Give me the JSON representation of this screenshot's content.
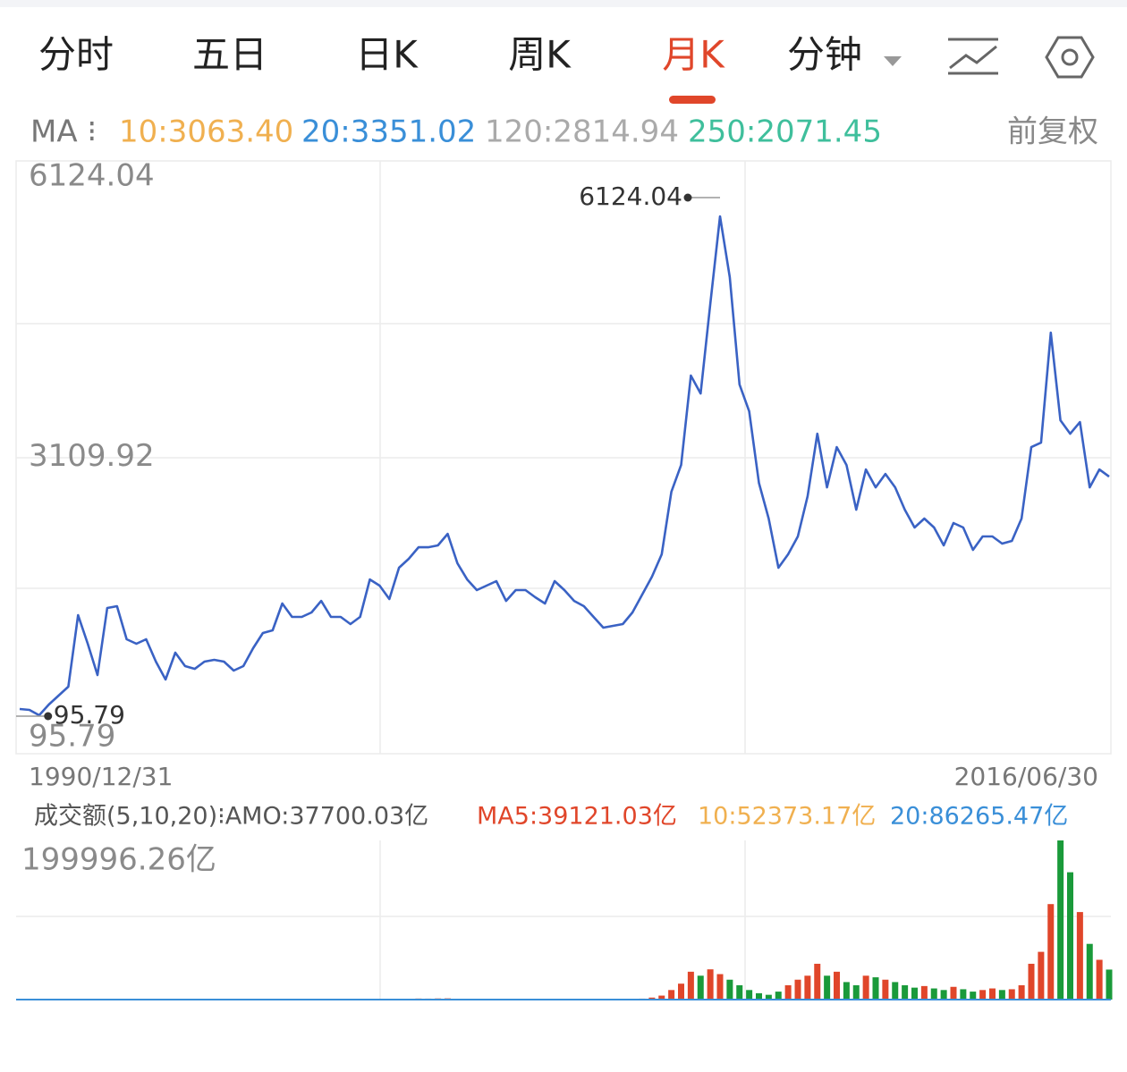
{
  "header": {
    "tabs": [
      "分时",
      "五日",
      "日K",
      "周K",
      "月K",
      "分钟"
    ],
    "ma_label": "MA ⁝",
    "ma": [
      "10:3063.40",
      "20:3351.02",
      "120:2814.94",
      "250:2071.45"
    ],
    "adjust": "前复权"
  },
  "volume_header": {
    "amo": "成交额(5,10,20)⁝AMO:37700.03亿",
    "ma": [
      "MA5:39121.03亿",
      "10:52373.17亿",
      "20:86265.47亿"
    ]
  },
  "chart_data": {
    "type": "line",
    "color": "#3a62c4",
    "categories": [
      "1990/12/31",
      null,
      null,
      null,
      null,
      null,
      null,
      null,
      null,
      null,
      null,
      null,
      null,
      null,
      null,
      null,
      null,
      null,
      null,
      null,
      null,
      null,
      null,
      null,
      null,
      null,
      null,
      null,
      null,
      null,
      null,
      null,
      null,
      null,
      null,
      null,
      null,
      null,
      null,
      null,
      null,
      null,
      null,
      null,
      null,
      null,
      null,
      null,
      null,
      null,
      null,
      null,
      null,
      null,
      null,
      null,
      null,
      null,
      null,
      null,
      null,
      null,
      null,
      null,
      null,
      null,
      null,
      null,
      null,
      null,
      null,
      null,
      null,
      null,
      null,
      null,
      null,
      null,
      null,
      null,
      null,
      null,
      null,
      null,
      null,
      null,
      null,
      null,
      null,
      null,
      null,
      null,
      null,
      null,
      null,
      null,
      null,
      null,
      null,
      null,
      null,
      null,
      null,
      null,
      null,
      null,
      null,
      null,
      null,
      null,
      null,
      null,
      "2016/06/30"
    ],
    "values": [
      171,
      161,
      95.79,
      225,
      333,
      441,
      1305,
      960,
      582,
      1392,
      1414,
      1014,
      960,
      1014,
      744,
      528,
      852,
      690,
      657,
      744,
      766,
      744,
      636,
      690,
      906,
      1090,
      1122,
      1446,
      1284,
      1284,
      1338,
      1478,
      1284,
      1284,
      1198,
      1284,
      1737,
      1662,
      1500,
      1878,
      1986,
      2126,
      2126,
      2148,
      2288,
      1932,
      1737,
      1608,
      1662,
      1716,
      1478,
      1608,
      1608,
      1522,
      1446,
      1716,
      1608,
      1478,
      1414,
      1284,
      1154,
      1176,
      1198,
      1338,
      1554,
      1770,
      2040,
      2796,
      3120,
      4200,
      3984,
      5064,
      6124.04,
      5388,
      4092,
      3768,
      2904,
      2472,
      1878,
      2040,
      2256,
      2742,
      3498,
      2850,
      3336,
      3120,
      2580,
      3066,
      2850,
      3012,
      2850,
      2580,
      2364,
      2472,
      2364,
      2148,
      2418,
      2364,
      2094,
      2256,
      2256,
      2170,
      2202,
      2472,
      3336,
      3390,
      4718,
      3660,
      3498,
      3638,
      2850,
      3066,
      2979
    ],
    "ylim": [
      95.79,
      6124.04
    ],
    "yticks": [
      95.79,
      3109.92,
      6124.04
    ],
    "volume": {
      "type": "bar",
      "up_color": "#e0462a",
      "down_color": "#1a9a3a",
      "values": [
        5,
        8,
        12,
        20,
        30,
        60,
        120,
        90,
        80,
        150,
        200,
        180,
        150,
        160,
        120,
        100,
        140,
        110,
        100,
        130,
        120,
        110,
        100,
        130,
        200,
        300,
        350,
        500,
        420,
        400,
        450,
        520,
        400,
        380,
        350,
        400,
        700,
        650,
        600,
        900,
        1100,
        1300,
        1200,
        1400,
        1500,
        1000,
        800,
        700,
        750,
        800,
        600,
        650,
        700,
        600,
        550,
        800,
        700,
        600,
        550,
        500,
        450,
        500,
        520,
        700,
        1200,
        2500,
        5000,
        12000,
        20000,
        35000,
        30000,
        38000,
        32000,
        25000,
        18000,
        12000,
        8000,
        6000,
        10000,
        18000,
        25000,
        30000,
        45000,
        30000,
        35000,
        22000,
        18000,
        30000,
        28000,
        25000,
        22000,
        18000,
        15000,
        17000,
        14000,
        12000,
        16000,
        13000,
        10000,
        12000,
        14000,
        12000,
        13000,
        18000,
        45000,
        60000,
        120000,
        199996.26,
        160000,
        110000,
        70000,
        50000,
        37700.03
      ],
      "ylim": [
        0,
        199996.26
      ],
      "yticks": [
        {
          "value": 199996.26,
          "label": "199996.26亿"
        }
      ]
    }
  }
}
